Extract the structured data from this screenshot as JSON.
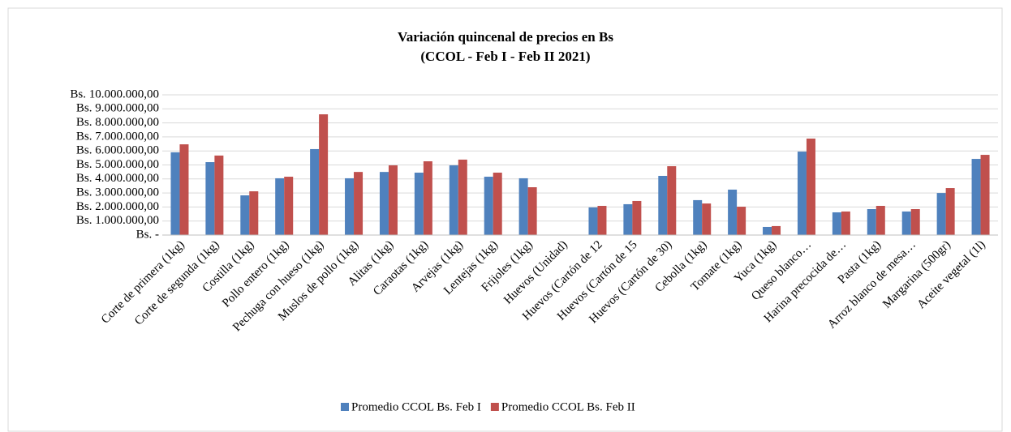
{
  "chart_data": {
    "type": "bar",
    "title": "Variación quincenal de precios en Bs",
    "subtitle": "(CCOL - Feb I - Feb II 2021)",
    "categories": [
      "Corte de primera (1kg)",
      "Corte de segunda (1kg)",
      "Costilla (1kg)",
      "Pollo entero (1kg)",
      "Pechuga con hueso (1kg)",
      "Muslos de pollo (1kg)",
      "Alitas (1kg)",
      "Caraotas (1kg)",
      "Arvejas (1kg)",
      "Lentejas (1kg)",
      "Frijoles (1kg)",
      "Huevos (Unidad)",
      "Huevos (Cartón de 12",
      "Huevos (Cartón de 15",
      "Huevos (Cartón de 30)",
      "Cebolla (1kg)",
      "Tomate (1kg)",
      "Yuca (1kg)",
      "Queso blanco…",
      "Harina precocida de…",
      "Pasta (1kg)",
      "Arroz blanco de mesa…",
      "Margarina (500gr)",
      "Aceite vegetal (1l)"
    ],
    "series": [
      {
        "name": "Promedio CCOL Bs. Feb I",
        "color": "#4f81bd",
        "values": [
          5900000,
          5200000,
          2830000,
          4050000,
          6130000,
          4050000,
          4500000,
          4450000,
          4970000,
          4160000,
          4050000,
          0,
          1970000,
          2200000,
          4220000,
          2490000,
          3240000,
          580000,
          5950000,
          1620000,
          1850000,
          1680000,
          3000000,
          5430000
        ]
      },
      {
        "name": "Promedio CCOL Bs. Feb II",
        "color": "#c0504d",
        "values": [
          6470000,
          5670000,
          3120000,
          4160000,
          8610000,
          4500000,
          4970000,
          5260000,
          5380000,
          4450000,
          3410000,
          0,
          2080000,
          2430000,
          4910000,
          2250000,
          2020000,
          640000,
          6880000,
          1680000,
          2080000,
          1850000,
          3350000,
          5720000
        ]
      }
    ],
    "ylim": [
      0,
      10000000
    ],
    "yticks": [
      {
        "value": 0,
        "label": "Bs. -"
      },
      {
        "value": 1000000,
        "label": "Bs. 1.000.000,00"
      },
      {
        "value": 2000000,
        "label": "Bs. 2.000.000,00"
      },
      {
        "value": 3000000,
        "label": "Bs. 3.000.000,00"
      },
      {
        "value": 4000000,
        "label": "Bs. 4.000.000,00"
      },
      {
        "value": 5000000,
        "label": "Bs. 5.000.000,00"
      },
      {
        "value": 6000000,
        "label": "Bs. 6.000.000,00"
      },
      {
        "value": 7000000,
        "label": "Bs. 7.000.000,00"
      },
      {
        "value": 8000000,
        "label": "Bs. 8.000.000,00"
      },
      {
        "value": 9000000,
        "label": "Bs. 9.000.000,00"
      },
      {
        "value": 10000000,
        "label": "Bs. 10.000.000,00"
      }
    ],
    "grid": true,
    "legend": "bottom"
  }
}
